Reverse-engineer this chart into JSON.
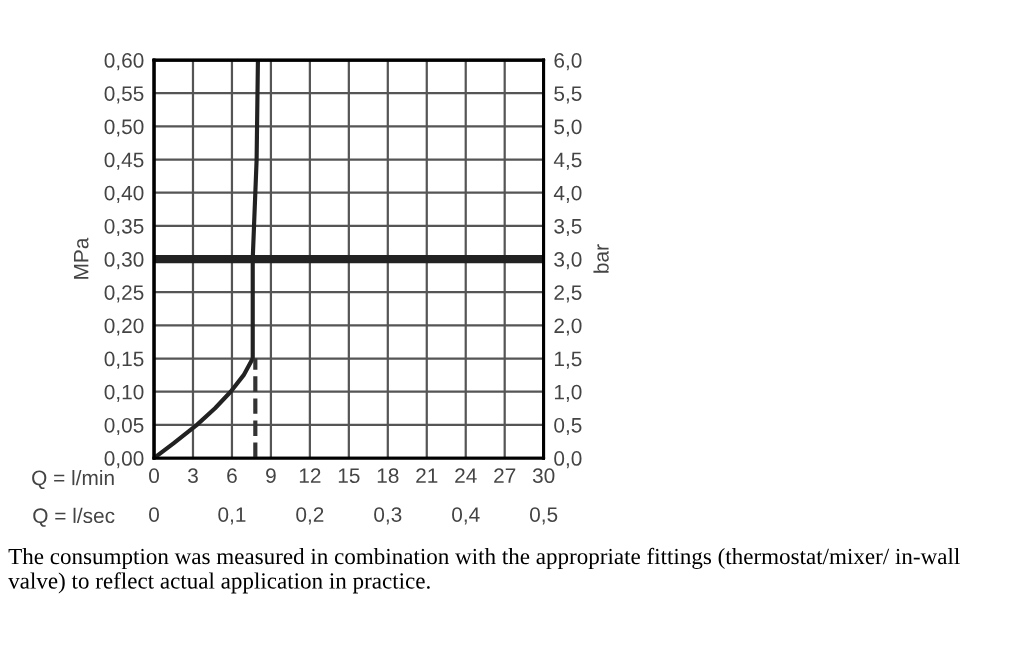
{
  "chart_data": {
    "type": "line",
    "xlabel": "Q = l/min",
    "x2label": "Q = l/sec",
    "ylabel": "MPa",
    "y2label": "bar",
    "annotations": [
      "The consumption was measured in combination with the appropriate fittings (thermostat/mixer/ in-wall valve) to reflect actual application in practice."
    ],
    "series": [
      {
        "x": [
          0,
          1.5,
          3.3,
          4.7,
          5.9,
          6.9,
          7.6,
          7.6,
          7.7,
          7.9,
          8.0
        ],
        "values": [
          0,
          0.022,
          0.05,
          0.075,
          0.1,
          0.125,
          0.15,
          0.3,
          0.35,
          0.45,
          0.6
        ],
        "color": "#222222",
        "line_style": "solid"
      },
      {
        "x": [
          7.8,
          7.8
        ],
        "values": [
          0,
          0.15
        ],
        "color": "#333333",
        "line_style": "dashed"
      }
    ],
    "ref_lines": [
      {
        "axis": "y",
        "value": 0.3,
        "color": "#222222"
      }
    ],
    "xlim": [
      0,
      30
    ],
    "xticks": [
      0,
      3,
      6,
      9,
      12,
      15,
      18,
      21,
      24,
      27,
      30
    ],
    "x2lim": [
      0,
      0.5
    ],
    "x2ticks": [
      {
        "value": 0,
        "label": "0"
      },
      {
        "value": 0.1,
        "label": "0,1"
      },
      {
        "value": 0.2,
        "label": "0,2"
      },
      {
        "value": 0.3,
        "label": "0,3"
      },
      {
        "value": 0.4,
        "label": "0,4"
      },
      {
        "value": 0.5,
        "label": "0,5"
      }
    ],
    "ylim": [
      0,
      0.6
    ],
    "yticks": [
      {
        "value": 0,
        "label": "0,00"
      },
      {
        "value": 0.05,
        "label": "0,05"
      },
      {
        "value": 0.1,
        "label": "0,10"
      },
      {
        "value": 0.15,
        "label": "0,15"
      },
      {
        "value": 0.2,
        "label": "0,20"
      },
      {
        "value": 0.25,
        "label": "0,25"
      },
      {
        "value": 0.3,
        "label": "0,30"
      },
      {
        "value": 0.35,
        "label": "0,35"
      },
      {
        "value": 0.4,
        "label": "0,40"
      },
      {
        "value": 0.45,
        "label": "0,45"
      },
      {
        "value": 0.5,
        "label": "0,50"
      },
      {
        "value": 0.55,
        "label": "0,55"
      },
      {
        "value": 0.6,
        "label": "0,60"
      }
    ],
    "y2lim": [
      0,
      6
    ],
    "y2ticks": [
      {
        "value": 0,
        "label": "0,0"
      },
      {
        "value": 0.5,
        "label": "0,5"
      },
      {
        "value": 1,
        "label": "1,0"
      },
      {
        "value": 1.5,
        "label": "1,5"
      },
      {
        "value": 2,
        "label": "2,0"
      },
      {
        "value": 2.5,
        "label": "2,5"
      },
      {
        "value": 3,
        "label": "3,0"
      },
      {
        "value": 3.5,
        "label": "3,5"
      },
      {
        "value": 4,
        "label": "4,0"
      },
      {
        "value": 4.5,
        "label": "4,5"
      },
      {
        "value": 5,
        "label": "5,0"
      },
      {
        "value": 5.5,
        "label": "5,5"
      },
      {
        "value": 6,
        "label": "6,0"
      }
    ],
    "grid": true,
    "marker": "none"
  }
}
